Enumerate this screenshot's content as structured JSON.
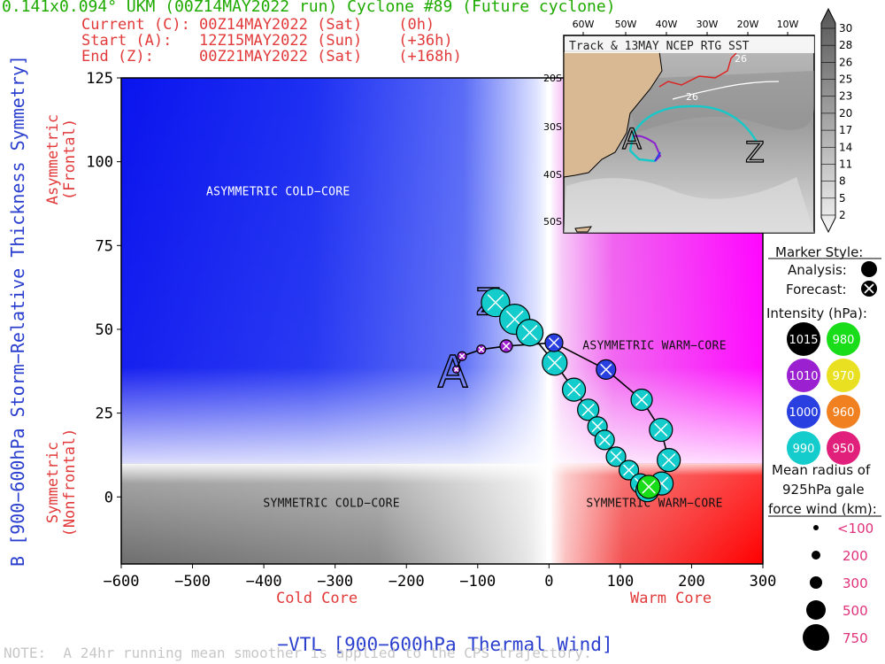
{
  "header": {
    "title": "0.141x0.094° UKM (00Z14MAY2022 run) Cyclone #89 (Future cyclone)",
    "current": "Current (C): 00Z14MAY2022 (Sat)    (0h)",
    "start": "Start (A):   12Z15MAY2022 (Sun)    (+36h)",
    "end": "End (Z):     00Z21MAY2022 (Sat)    (+168h)"
  },
  "note": "NOTE:  A 24hr running mean smoother is applied to the CPS trajectory.",
  "chart_data": {
    "type": "scatter",
    "xlabel": "−V<sub>T</sub><sup>L</sup> [900−600hPa Thermal Wind]",
    "xlabel_text": "−VTL [900−600hPa Thermal Wind]",
    "ylabel": "B [900−600hPa Storm−Relative Thickness Symmetry]",
    "xlim": [
      -600,
      300
    ],
    "ylim": [
      -20,
      125
    ],
    "xticks": [
      -600,
      -500,
      -400,
      -300,
      -200,
      -100,
      0,
      100,
      200,
      300
    ],
    "yticks": [
      0,
      25,
      50,
      75,
      100,
      125
    ],
    "x_sub_left": "Cold Core",
    "x_sub_right": "Warm Core",
    "y_sub_top": "Asymmetric\n(Frontal)",
    "y_sub_bottom": "Symmetric\n(Nonfrontal)",
    "quadrant_labels": {
      "asym_cold": "ASYMMETRIC COLD−CORE",
      "asym_warm": "ASYMMETRIC WARM−CORE",
      "sym_cold": "SYMMETRIC COLD−CORE",
      "sym_warm": "SYMMETRIC WARM−CORE"
    },
    "start_marker": "A",
    "end_marker": "Z",
    "trajectory": [
      {
        "x": -130,
        "y": 38,
        "color": "#9a20d0",
        "r": 4
      },
      {
        "x": -122,
        "y": 42,
        "color": "#9a20d0",
        "r": 5
      },
      {
        "x": -95,
        "y": 44,
        "color": "#9a20d0",
        "r": 5
      },
      {
        "x": -60,
        "y": 45,
        "color": "#9a20d0",
        "r": 7
      },
      {
        "x": 7,
        "y": 46,
        "color": "#2a3fe0",
        "r": 10
      },
      {
        "x": 80,
        "y": 38,
        "color": "#2a3fe0",
        "r": 11
      },
      {
        "x": 130,
        "y": 29,
        "color": "#14cccc",
        "r": 12
      },
      {
        "x": 157,
        "y": 20,
        "color": "#14cccc",
        "r": 13
      },
      {
        "x": 168,
        "y": 11,
        "color": "#14cccc",
        "r": 13
      },
      {
        "x": 158,
        "y": 4,
        "color": "#14cccc",
        "r": 13
      },
      {
        "x": 138,
        "y": 2,
        "color": "#14cccc",
        "r": 13
      },
      {
        "x": 128,
        "y": 4,
        "color": "#14cccc",
        "r": 11
      },
      {
        "x": 112,
        "y": 8,
        "color": "#14cccc",
        "r": 11
      },
      {
        "x": 94,
        "y": 12,
        "color": "#14cccc",
        "r": 11
      },
      {
        "x": 78,
        "y": 17,
        "color": "#14cccc",
        "r": 11
      },
      {
        "x": 68,
        "y": 21,
        "color": "#14cccc",
        "r": 11
      },
      {
        "x": 55,
        "y": 26,
        "color": "#14cccc",
        "r": 12
      },
      {
        "x": 35,
        "y": 32,
        "color": "#14cccc",
        "r": 13
      },
      {
        "x": 8,
        "y": 40,
        "color": "#14cccc",
        "r": 14
      },
      {
        "x": -27,
        "y": 49,
        "color": "#14cccc",
        "r": 15
      },
      {
        "x": -48,
        "y": 53,
        "color": "#14cccc",
        "r": 17
      },
      {
        "x": -75,
        "y": 58,
        "color": "#14cccc",
        "r": 16
      }
    ],
    "current_point": {
      "x": 140,
      "y": 3,
      "color": "#18dd18",
      "r": 13
    }
  },
  "inset_map": {
    "title": "Track & 13MAY NCEP RTG SST",
    "lon_labels": [
      "60W",
      "50W",
      "40W",
      "30W",
      "20W",
      "10W"
    ],
    "lat_labels": [
      "20S",
      "30S",
      "40S",
      "50S"
    ],
    "contour_label": "26",
    "colorbar_levels": [
      "30",
      "28",
      "26",
      "25",
      "23",
      "20",
      "17",
      "14",
      "11",
      "8",
      "5",
      "2"
    ]
  },
  "legend": {
    "marker_style": "Marker Style:",
    "analysis": "Analysis:",
    "forecast": "Forecast:",
    "intensity": "Intensity (hPa):",
    "intensity_items": [
      {
        "label": "1015",
        "color": "#000000",
        "text": "#ffffff"
      },
      {
        "label": "980",
        "color": "#18dd18",
        "text": "#ffffff"
      },
      {
        "label": "1010",
        "color": "#9a20d0",
        "text": "#ffffff"
      },
      {
        "label": "970",
        "color": "#e8e020",
        "text": "#ffffff"
      },
      {
        "label": "1000",
        "color": "#2a3fe0",
        "text": "#ffffff"
      },
      {
        "label": "960",
        "color": "#f08020",
        "text": "#ffffff"
      },
      {
        "label": "990",
        "color": "#14cccc",
        "text": "#ffffff"
      },
      {
        "label": "950",
        "color": "#e0207a",
        "text": "#ffffff"
      }
    ],
    "radius_title": [
      "Mean radius of",
      "925hPa gale",
      "force wind (km):"
    ],
    "radius_items": [
      "<100",
      "200",
      "300",
      "500",
      "750"
    ]
  }
}
